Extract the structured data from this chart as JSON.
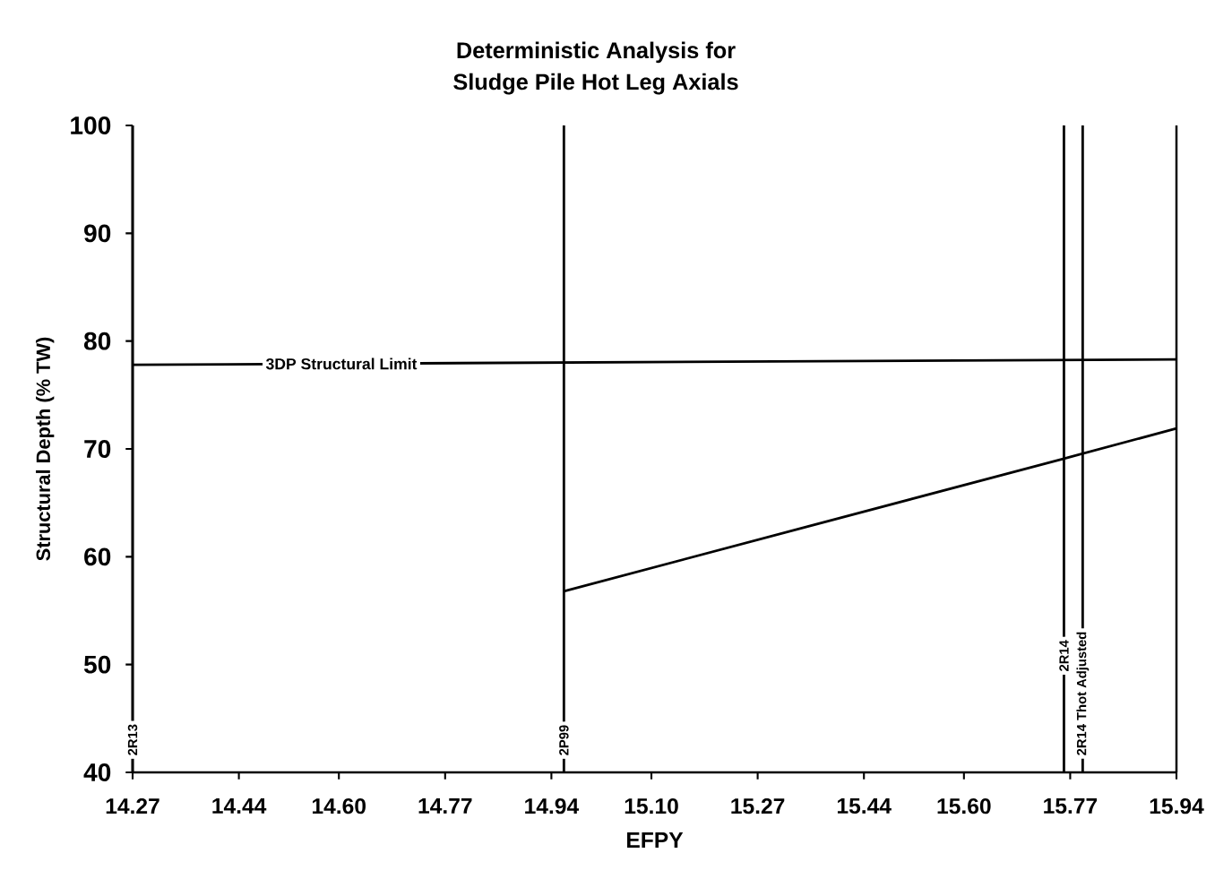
{
  "chart_data": {
    "type": "line",
    "title": "Deterministic Analysis for\nSludge Pile Hot Leg Axials",
    "xlabel": "EFPY",
    "ylabel": "Structural Depth (% TW)",
    "xlim": [
      14.27,
      15.94
    ],
    "xticks": [
      14.27,
      14.44,
      {
        "value": 14.6,
        "label": "14.60"
      },
      14.77,
      14.94,
      {
        "value": 15.1,
        "label": "15.10"
      },
      15.27,
      15.44,
      {
        "value": 15.6,
        "label": "15.60"
      },
      15.77,
      15.94
    ],
    "ylim": [
      40,
      100
    ],
    "yticks": [
      40,
      50,
      60,
      70,
      80,
      90,
      100
    ],
    "grid": false,
    "legend": false,
    "marker": "none",
    "line_style": "solid",
    "series": [
      {
        "name": "3DP Structural Limit",
        "color": "#000000",
        "x": [
          14.27,
          15.94
        ],
        "values": [
          77.8,
          78.3
        ]
      },
      {
        "color": "#000000",
        "x": [
          14.96,
          15.35,
          15.76,
          15.94
        ],
        "values": [
          56.8,
          62.8,
          69.1,
          71.9
        ]
      }
    ],
    "ref_lines": [
      {
        "axis": "x",
        "value": 14.27,
        "label": "2R13"
      },
      {
        "axis": "x",
        "value": 14.96,
        "label": "2P99"
      },
      {
        "axis": "x",
        "value": 15.76,
        "label": "2R14"
      },
      {
        "axis": "x",
        "value": 15.79,
        "label": "2R14 Thot Adjusted"
      }
    ]
  }
}
